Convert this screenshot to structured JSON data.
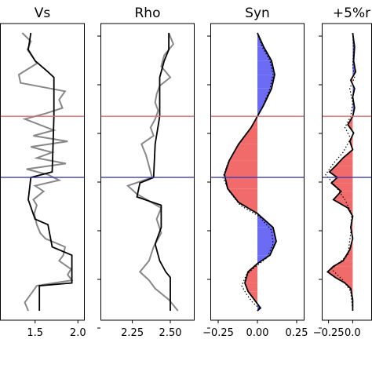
{
  "chart_data": [
    {
      "type": "line",
      "title": "Vs",
      "xticks": [
        "1.5",
        "2.0"
      ],
      "xtick_values": [
        1.5,
        2.0
      ],
      "xlim": [
        1.09,
        2.08
      ],
      "series": [
        {
          "color": "#888888",
          "kind": "raw log",
          "points": [
            [
              1.35,
              0.0
            ],
            [
              1.45,
              0.03
            ],
            [
              1.41,
              0.06
            ],
            [
              1.48,
              0.09
            ],
            [
              1.52,
              0.11
            ],
            [
              1.31,
              0.15
            ],
            [
              1.33,
              0.18
            ],
            [
              1.85,
              0.21
            ],
            [
              1.78,
              0.24
            ],
            [
              1.82,
              0.27
            ],
            [
              1.62,
              0.29
            ],
            [
              1.38,
              0.31
            ],
            [
              1.55,
              0.33
            ],
            [
              1.72,
              0.35
            ],
            [
              1.48,
              0.37
            ],
            [
              1.88,
              0.39
            ],
            [
              1.45,
              0.41
            ],
            [
              1.7,
              0.43
            ],
            [
              1.52,
              0.45
            ],
            [
              1.86,
              0.47
            ],
            [
              1.4,
              0.49
            ],
            [
              1.65,
              0.51
            ],
            [
              1.78,
              0.53
            ],
            [
              1.5,
              0.55
            ],
            [
              1.6,
              0.57
            ],
            [
              1.48,
              0.6
            ],
            [
              1.52,
              0.62
            ],
            [
              1.49,
              0.65
            ],
            [
              1.52,
              0.69
            ],
            [
              1.56,
              0.72
            ],
            [
              1.62,
              0.74
            ],
            [
              1.85,
              0.77
            ],
            [
              1.83,
              0.8
            ],
            [
              1.78,
              0.82
            ],
            [
              1.92,
              0.85
            ],
            [
              1.88,
              0.87
            ],
            [
              1.93,
              0.89
            ],
            [
              1.52,
              0.91
            ],
            [
              1.45,
              0.94
            ],
            [
              1.38,
              0.97
            ],
            [
              1.42,
              1.0
            ]
          ]
        },
        {
          "color": "#000000",
          "kind": "blocked log",
          "points": [
            [
              1.45,
              0.0
            ],
            [
              1.42,
              0.06
            ],
            [
              1.5,
              0.1
            ],
            [
              1.65,
              0.14
            ],
            [
              1.72,
              0.16
            ],
            [
              1.72,
              0.3
            ],
            [
              1.7,
              0.5
            ],
            [
              1.45,
              0.52
            ],
            [
              1.42,
              0.6
            ],
            [
              1.5,
              0.67
            ],
            [
              1.65,
              0.69
            ],
            [
              1.7,
              0.77
            ],
            [
              1.93,
              0.8
            ],
            [
              1.93,
              0.9
            ],
            [
              1.55,
              0.91
            ],
            [
              1.55,
              1.0
            ]
          ]
        }
      ],
      "hlines": [
        {
          "y": 0.3,
          "color": "#e06666"
        },
        {
          "y": 0.52,
          "color": "#3c3cb4"
        }
      ]
    },
    {
      "type": "line",
      "title": "Rho",
      "xticks": [
        "2.25",
        "2.50"
      ],
      "xtick_values": [
        2.25,
        2.5
      ],
      "xlim": [
        2.04,
        2.66
      ],
      "series": [
        {
          "color": "#888888",
          "kind": "raw log",
          "points": [
            [
              2.49,
              0.0
            ],
            [
              2.52,
              0.04
            ],
            [
              2.46,
              0.08
            ],
            [
              2.44,
              0.12
            ],
            [
              2.5,
              0.16
            ],
            [
              2.43,
              0.19
            ],
            [
              2.41,
              0.22
            ],
            [
              2.4,
              0.25
            ],
            [
              2.42,
              0.28
            ],
            [
              2.4,
              0.31
            ],
            [
              2.37,
              0.34
            ],
            [
              2.39,
              0.37
            ],
            [
              2.31,
              0.4
            ],
            [
              2.34,
              0.44
            ],
            [
              2.36,
              0.48
            ],
            [
              2.38,
              0.52
            ],
            [
              2.22,
              0.55
            ],
            [
              2.28,
              0.58
            ],
            [
              2.44,
              0.63
            ],
            [
              2.41,
              0.67
            ],
            [
              2.44,
              0.72
            ],
            [
              2.39,
              0.77
            ],
            [
              2.36,
              0.82
            ],
            [
              2.3,
              0.86
            ],
            [
              2.36,
              0.89
            ],
            [
              2.4,
              0.92
            ],
            [
              2.49,
              0.96
            ],
            [
              2.55,
              1.0
            ]
          ]
        },
        {
          "color": "#000000",
          "kind": "blocked log",
          "points": [
            [
              2.49,
              0.0
            ],
            [
              2.49,
              0.06
            ],
            [
              2.46,
              0.1
            ],
            [
              2.44,
              0.14
            ],
            [
              2.43,
              0.16
            ],
            [
              2.43,
              0.3
            ],
            [
              2.4,
              0.4
            ],
            [
              2.39,
              0.52
            ],
            [
              2.3,
              0.54
            ],
            [
              2.28,
              0.59
            ],
            [
              2.44,
              0.62
            ],
            [
              2.44,
              0.7
            ],
            [
              2.4,
              0.76
            ],
            [
              2.43,
              0.82
            ],
            [
              2.47,
              0.86
            ],
            [
              2.5,
              0.88
            ],
            [
              2.5,
              1.0
            ]
          ]
        }
      ],
      "hlines": [
        {
          "y": 0.3,
          "color": "#e06666"
        },
        {
          "y": 0.52,
          "color": "#3c3cb4"
        }
      ]
    },
    {
      "type": "area",
      "title": "Syn",
      "xticks": [
        "−0.25",
        "0.00",
        "0.25"
      ],
      "xtick_values": [
        -0.25,
        0.0,
        0.25
      ],
      "xlim": [
        -0.3,
        0.3
      ],
      "fill": {
        "positive_color": "#6b6bf5",
        "negative_color": "#f26b6b"
      },
      "series": [
        {
          "color": "#000000",
          "kind": "trace",
          "points": [
            [
              0.0,
              0.0
            ],
            [
              0.04,
              0.05
            ],
            [
              0.09,
              0.1
            ],
            [
              0.11,
              0.15
            ],
            [
              0.09,
              0.2
            ],
            [
              0.04,
              0.26
            ],
            [
              -0.04,
              0.34
            ],
            [
              -0.12,
              0.4
            ],
            [
              -0.18,
              0.46
            ],
            [
              -0.21,
              0.51
            ],
            [
              -0.19,
              0.56
            ],
            [
              -0.12,
              0.61
            ],
            [
              0.0,
              0.65
            ],
            [
              0.1,
              0.7
            ],
            [
              0.12,
              0.75
            ],
            [
              0.08,
              0.8
            ],
            [
              0.0,
              0.83
            ],
            [
              -0.06,
              0.86
            ],
            [
              -0.08,
              0.9
            ],
            [
              -0.06,
              0.93
            ],
            [
              -0.02,
              0.96
            ],
            [
              0.02,
              0.99
            ],
            [
              0.0,
              1.0
            ]
          ]
        },
        {
          "color": "#000000",
          "kind": "dotted trace",
          "points": [
            [
              0.0,
              0.0
            ],
            [
              0.03,
              0.05
            ],
            [
              0.08,
              0.1
            ],
            [
              0.1,
              0.15
            ],
            [
              0.08,
              0.2
            ],
            [
              0.03,
              0.27
            ],
            [
              -0.05,
              0.35
            ],
            [
              -0.13,
              0.41
            ],
            [
              -0.19,
              0.47
            ],
            [
              -0.22,
              0.52
            ],
            [
              -0.18,
              0.57
            ],
            [
              -0.11,
              0.62
            ],
            [
              0.01,
              0.66
            ],
            [
              0.09,
              0.71
            ],
            [
              0.1,
              0.76
            ],
            [
              0.06,
              0.81
            ],
            [
              -0.01,
              0.84
            ],
            [
              -0.07,
              0.87
            ],
            [
              -0.1,
              0.91
            ],
            [
              -0.07,
              0.94
            ],
            [
              -0.03,
              0.97
            ],
            [
              0.01,
              0.99
            ],
            [
              0.0,
              1.0
            ]
          ]
        }
      ],
      "hlines": [
        {
          "y": 0.3,
          "color": "#e06666"
        },
        {
          "y": 0.52,
          "color": "#3c3cb4"
        }
      ]
    },
    {
      "type": "area",
      "title": "+5%r",
      "xticks": [
        "−0.25",
        "0.0"
      ],
      "xtick_values": [
        -0.25,
        0.0
      ],
      "xlim": [
        -0.32,
        0.2
      ],
      "fill": {
        "positive_color": "#6b6bf5",
        "negative_color": "#f26b6b"
      },
      "series": [
        {
          "color": "#000000",
          "kind": "trace",
          "points": [
            [
              0.0,
              0.0
            ],
            [
              0.02,
              0.05
            ],
            [
              0.01,
              0.1
            ],
            [
              0.03,
              0.14
            ],
            [
              -0.02,
              0.17
            ],
            [
              0.02,
              0.2
            ],
            [
              0.0,
              0.23
            ],
            [
              0.02,
              0.27
            ],
            [
              0.0,
              0.3
            ],
            [
              -0.05,
              0.33
            ],
            [
              0.01,
              0.36
            ],
            [
              -0.03,
              0.39
            ],
            [
              0.0,
              0.42
            ],
            [
              -0.1,
              0.45
            ],
            [
              -0.18,
              0.48
            ],
            [
              -0.24,
              0.5
            ],
            [
              -0.16,
              0.52
            ],
            [
              -0.22,
              0.54
            ],
            [
              -0.12,
              0.57
            ],
            [
              -0.2,
              0.6
            ],
            [
              -0.05,
              0.63
            ],
            [
              0.0,
              0.66
            ],
            [
              -0.02,
              0.7
            ],
            [
              0.0,
              0.74
            ],
            [
              -0.03,
              0.78
            ],
            [
              -0.1,
              0.82
            ],
            [
              -0.2,
              0.84
            ],
            [
              -0.26,
              0.86
            ],
            [
              -0.18,
              0.88
            ],
            [
              -0.08,
              0.9
            ],
            [
              -0.02,
              0.92
            ],
            [
              0.0,
              0.96
            ],
            [
              0.0,
              1.0
            ]
          ]
        },
        {
          "color": "#000000",
          "kind": "dotted trace",
          "points": [
            [
              0.0,
              0.0
            ],
            [
              0.01,
              0.06
            ],
            [
              0.0,
              0.12
            ],
            [
              0.02,
              0.16
            ],
            [
              -0.03,
              0.2
            ],
            [
              0.0,
              0.25
            ],
            [
              -0.02,
              0.3
            ],
            [
              -0.08,
              0.34
            ],
            [
              -0.02,
              0.38
            ],
            [
              -0.1,
              0.43
            ],
            [
              -0.2,
              0.47
            ],
            [
              -0.28,
              0.51
            ],
            [
              -0.18,
              0.55
            ],
            [
              -0.08,
              0.6
            ],
            [
              -0.01,
              0.65
            ],
            [
              -0.02,
              0.72
            ],
            [
              -0.05,
              0.8
            ],
            [
              -0.22,
              0.85
            ],
            [
              -0.1,
              0.89
            ],
            [
              -0.02,
              0.93
            ],
            [
              0.0,
              1.0
            ]
          ]
        }
      ],
      "hlines": [
        {
          "y": 0.3,
          "color": "#e06666"
        },
        {
          "y": 0.52,
          "color": "#3c3cb4"
        }
      ]
    }
  ]
}
